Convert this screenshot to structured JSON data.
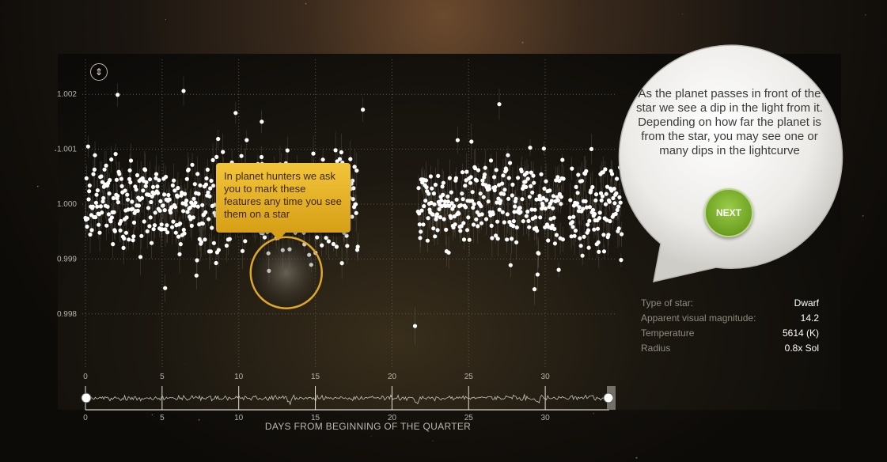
{
  "tooltip": {
    "text": "In planet hunters we ask you to mark these features any time you see them on a star"
  },
  "bubble": {
    "text": "As the planet passes in front of the star we see a dip in the light from it. Depending on how far the planet is from the star, you may see one or many dips in the lightcurve",
    "next_label": "NEXT"
  },
  "star_info": {
    "rows": [
      {
        "key": "Type of star:",
        "value": "Dwarf"
      },
      {
        "key": "Apparent visual magnitude:",
        "value": "14.2"
      },
      {
        "key": "Temperature",
        "value": "5614 (K)"
      },
      {
        "key": "Radius",
        "value": "0.8x Sol"
      }
    ]
  },
  "icons": {
    "zoom": "vertical-resize-icon"
  },
  "colors": {
    "points": "#ffffff",
    "highlight": "#e0a82a",
    "tooltip": "#f0be30",
    "next": "#7db232"
  },
  "chart_data": {
    "type": "scatter",
    "xlabel": "DAYS FROM BEGINNING OF THE QUARTER",
    "ylabel": "",
    "xlim": [
      0,
      35
    ],
    "ylim": [
      0.9977,
      1.0022
    ],
    "x_ticks": [
      "0",
      "5",
      "10",
      "15",
      "20",
      "25",
      "30"
    ],
    "x_tick_values": [
      0,
      5,
      10,
      15,
      20,
      25,
      30
    ],
    "y_ticks": [
      "0.998",
      "0.999",
      "1.000",
      "1.001",
      "1.002"
    ],
    "y_tick_values": [
      0.998,
      0.999,
      1.0,
      1.001,
      1.002
    ],
    "segments": [
      [
        0,
        17.8
      ],
      [
        21.7,
        31.2
      ],
      [
        31.6,
        35
      ]
    ],
    "noise_sigma": 0.00042,
    "transit_dips": [
      {
        "x": 13.3,
        "depth": 0.0014
      },
      {
        "x": 21.6,
        "depth": 0.0014
      },
      {
        "x": 29.5,
        "depth": 0.0013
      }
    ],
    "outliers": [
      {
        "x": 2.1,
        "y": 1.00199
      },
      {
        "x": 6.4,
        "y": 1.00206
      },
      {
        "x": 9.8,
        "y": 1.00166
      },
      {
        "x": 18.1,
        "y": 1.00172
      },
      {
        "x": 27.0,
        "y": 1.00182
      },
      {
        "x": 5.2,
        "y": 0.99847
      },
      {
        "x": 21.5,
        "y": 0.99778
      },
      {
        "x": 29.3,
        "y": 0.99845
      },
      {
        "x": 11.5,
        "y": 1.0015
      }
    ],
    "highlight": {
      "x": 13.1,
      "y": 0.99875
    },
    "navigator_ticks": [
      "0",
      "5",
      "10",
      "15",
      "20",
      "25",
      "30"
    ]
  }
}
